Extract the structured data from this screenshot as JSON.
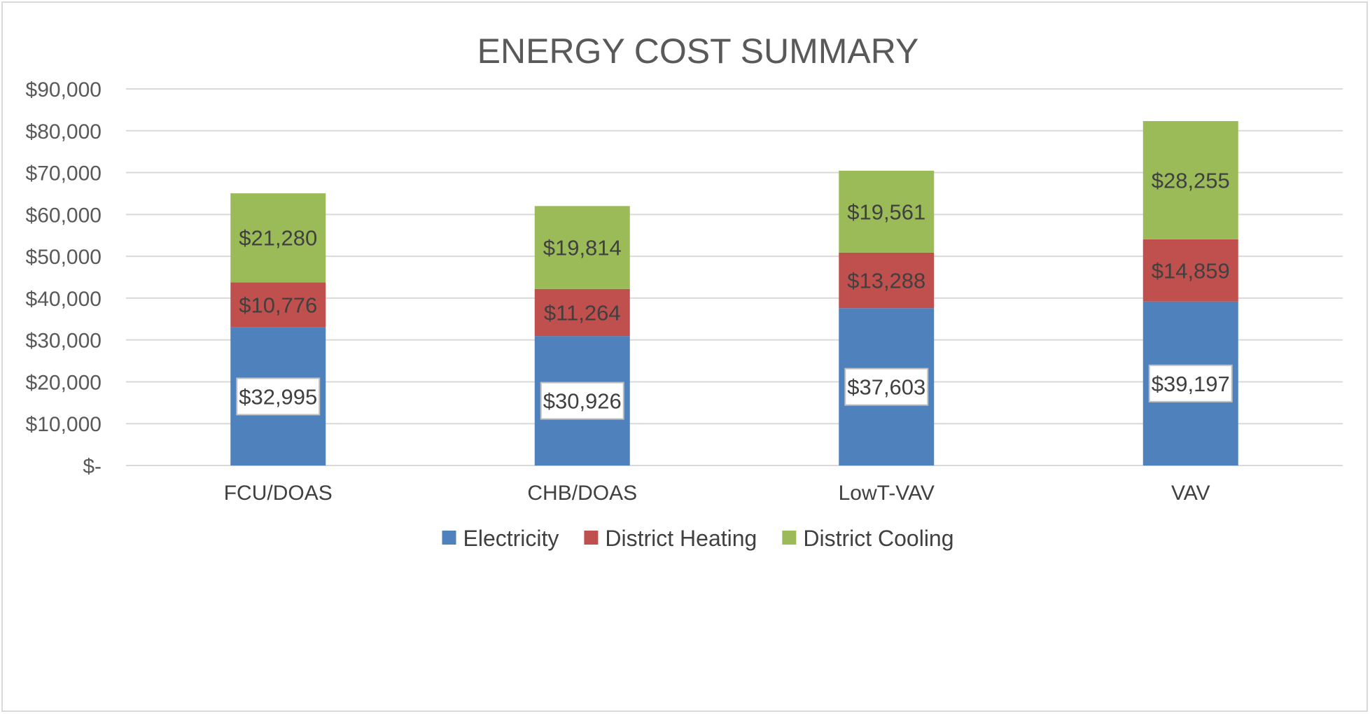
{
  "chart_data": {
    "type": "bar",
    "stacked": true,
    "title": "ENERGY COST SUMMARY",
    "xlabel": "",
    "ylabel": "",
    "categories": [
      "FCU/DOAS",
      "CHB/DOAS",
      "LowT-VAV",
      "VAV"
    ],
    "series": [
      {
        "name": "Electricity",
        "color": "#4F81BD",
        "values": [
          32995,
          30926,
          37603,
          39197
        ],
        "labels": [
          "$32,995",
          "$30,926",
          "$37,603",
          "$39,197"
        ],
        "label_boxed": true
      },
      {
        "name": "District Heating",
        "color": "#C0504D",
        "values": [
          10776,
          11264,
          13288,
          14859
        ],
        "labels": [
          "$10,776",
          "$11,264",
          "$13,288",
          "$14,859"
        ],
        "label_boxed": false
      },
      {
        "name": "District Cooling",
        "color": "#9BBB59",
        "values": [
          21280,
          19814,
          19561,
          28255
        ],
        "labels": [
          "$21,280",
          "$19,814",
          "$19,561",
          "$28,255"
        ],
        "label_boxed": false
      }
    ],
    "ylim": [
      0,
      90000
    ],
    "ytick_values": [
      0,
      10000,
      20000,
      30000,
      40000,
      50000,
      60000,
      70000,
      80000,
      90000
    ],
    "ytick_labels": [
      "$-",
      "$10,000",
      "$20,000",
      "$30,000",
      "$40,000",
      "$50,000",
      "$60,000",
      "$70,000",
      "$80,000",
      "$90,000"
    ],
    "grid": true,
    "legend_position": "bottom"
  }
}
